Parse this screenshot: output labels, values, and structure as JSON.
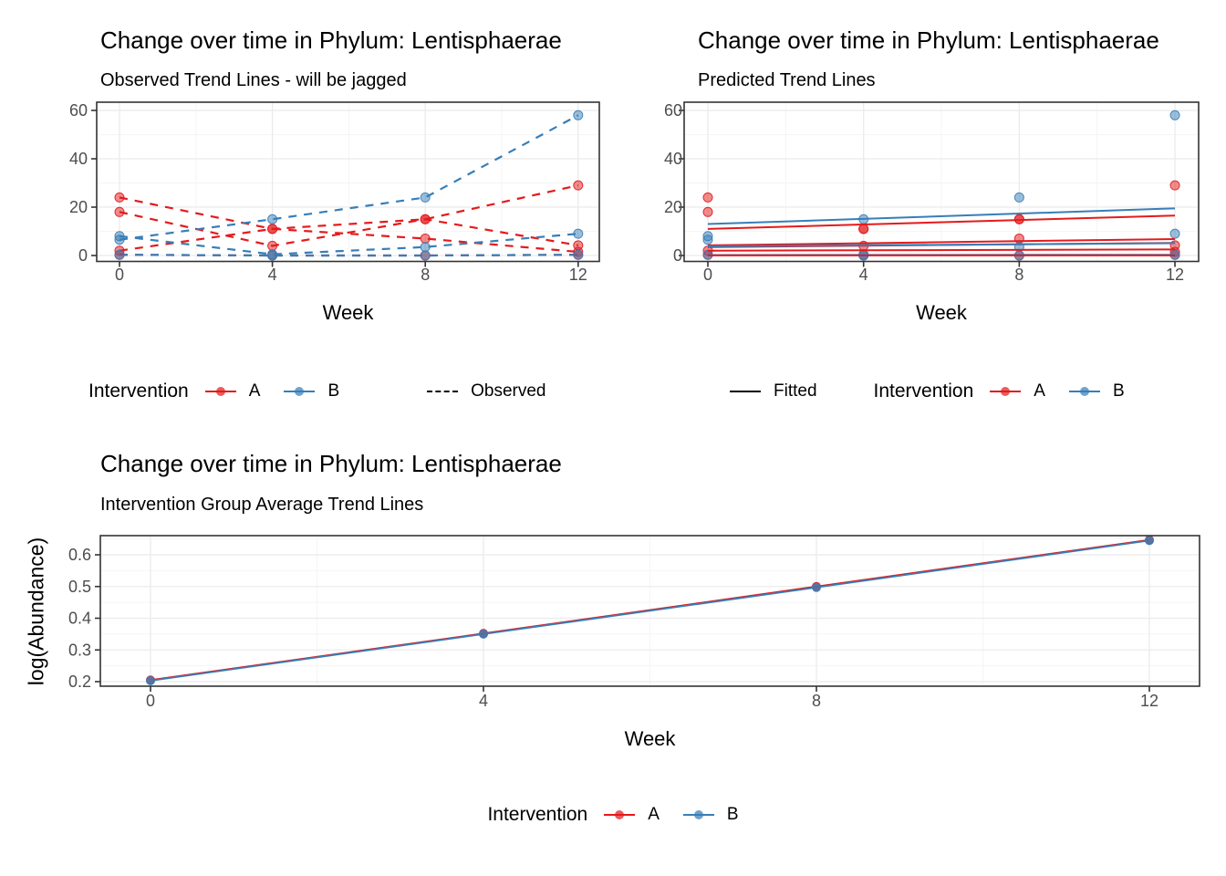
{
  "colors": {
    "A": "#E41A1C",
    "B": "#377EB8",
    "grid_major": "#EBEBEB",
    "grid_minor": "#F5F5F5",
    "panel_border": "#333333",
    "tick_label": "#4D4D4D",
    "legend_line": "#000000"
  },
  "chart_data": [
    {
      "type": "line",
      "key": "observed",
      "title": "Change over time in Phylum: Lentisphaerae",
      "subtitle": "Observed Trend Lines - will be jagged",
      "xlabel": "Week",
      "xticks": [
        0,
        4,
        8,
        12
      ],
      "xtick_labels": [
        "0",
        "4",
        "8",
        "12"
      ],
      "yticks": [
        0,
        20,
        40,
        60
      ],
      "ytick_labels": [
        "0",
        "20",
        "40",
        "60"
      ],
      "ylim": [
        -2.5,
        63
      ],
      "grid": true,
      "line_style": "dashed",
      "series": [
        {
          "group": "A",
          "x": [
            0,
            4,
            8,
            12
          ],
          "y": [
            24,
            11,
            15,
            29
          ]
        },
        {
          "group": "A",
          "x": [
            0,
            4,
            8,
            12
          ],
          "y": [
            18,
            4,
            15,
            4.2
          ]
        },
        {
          "group": "A",
          "x": [
            0,
            4,
            8,
            12
          ],
          "y": [
            2,
            11,
            7,
            1.5
          ]
        },
        {
          "group": "A",
          "x": [
            0,
            4,
            8,
            12
          ],
          "y": [
            0.3,
            0,
            0,
            0.3
          ]
        },
        {
          "group": "B",
          "x": [
            0,
            4,
            8,
            12
          ],
          "y": [
            6.5,
            15,
            24,
            58
          ]
        },
        {
          "group": "B",
          "x": [
            0,
            4,
            8,
            12
          ],
          "y": [
            8,
            0.5,
            3.5,
            9
          ]
        },
        {
          "group": "B",
          "x": [
            0,
            4,
            8,
            12
          ],
          "y": [
            0.3,
            0,
            0,
            0.3
          ]
        }
      ],
      "legend": {
        "title": "Intervention",
        "items": [
          {
            "label": "A"
          },
          {
            "label": "B"
          }
        ],
        "linetype_label": "Observed"
      }
    },
    {
      "type": "scatter",
      "key": "predicted",
      "title": "Change over time in Phylum: Lentisphaerae",
      "subtitle": "Predicted Trend Lines",
      "xlabel": "Week",
      "xticks": [
        0,
        4,
        8,
        12
      ],
      "xtick_labels": [
        "0",
        "4",
        "8",
        "12"
      ],
      "yticks": [
        0,
        20,
        40,
        60
      ],
      "ytick_labels": [
        "0",
        "20",
        "40",
        "60"
      ],
      "ylim": [
        -2.5,
        63
      ],
      "grid": true,
      "points": [
        {
          "group": "A",
          "x": [
            0,
            4,
            8,
            12
          ],
          "y": [
            24,
            11,
            15,
            29
          ]
        },
        {
          "group": "A",
          "x": [
            0,
            4,
            8,
            12
          ],
          "y": [
            18,
            4,
            15,
            4.2
          ]
        },
        {
          "group": "A",
          "x": [
            0,
            4,
            8,
            12
          ],
          "y": [
            2,
            11,
            7,
            1.5
          ]
        },
        {
          "group": "A",
          "x": [
            0,
            4,
            8,
            12
          ],
          "y": [
            0.3,
            0,
            0,
            0.3
          ]
        },
        {
          "group": "B",
          "x": [
            0,
            4,
            8,
            12
          ],
          "y": [
            6.5,
            15,
            24,
            58
          ]
        },
        {
          "group": "B",
          "x": [
            0,
            4,
            8,
            12
          ],
          "y": [
            8,
            0.5,
            3.5,
            9
          ]
        },
        {
          "group": "B",
          "x": [
            0,
            4,
            8,
            12
          ],
          "y": [
            0.3,
            0,
            0,
            0.3
          ]
        }
      ],
      "lines": [
        {
          "group": "B",
          "x": [
            0,
            12
          ],
          "y": [
            13,
            19.5
          ]
        },
        {
          "group": "A",
          "x": [
            0,
            12
          ],
          "y": [
            11,
            16.5
          ]
        },
        {
          "group": "A",
          "x": [
            0,
            12
          ],
          "y": [
            4.2,
            6.8
          ]
        },
        {
          "group": "A",
          "x": [
            0,
            12
          ],
          "y": [
            3.5,
            5.2
          ]
        },
        {
          "group": "B",
          "x": [
            0,
            12
          ],
          "y": [
            3.8,
            5.1
          ]
        },
        {
          "group": "A",
          "x": [
            0,
            12
          ],
          "y": [
            2,
            2.5
          ]
        },
        {
          "group": "B",
          "x": [
            0,
            12
          ],
          "y": [
            0.2,
            0.3
          ]
        },
        {
          "group": "A",
          "x": [
            0,
            12
          ],
          "y": [
            0.05,
            0.05
          ]
        }
      ],
      "legend": {
        "linetype_label": "Fitted",
        "title": "Intervention",
        "items": [
          {
            "label": "A"
          },
          {
            "label": "B"
          }
        ]
      }
    },
    {
      "type": "line",
      "key": "average",
      "title": "Change over time in Phylum: Lentisphaerae",
      "subtitle": "Intervention Group Average Trend Lines",
      "xlabel": "Week",
      "ylabel": "log(Abundance)",
      "xticks": [
        0,
        4,
        8,
        12
      ],
      "xtick_labels": [
        "0",
        "4",
        "8",
        "12"
      ],
      "yticks": [
        0.2,
        0.3,
        0.4,
        0.5,
        0.6
      ],
      "ytick_labels": [
        "0.2",
        "0.3",
        "0.4",
        "0.5",
        "0.6"
      ],
      "ylim": [
        0.185,
        0.668
      ],
      "grid": true,
      "line_style": "solid",
      "series": [
        {
          "group": "A",
          "x": [
            0,
            4,
            8,
            12
          ],
          "y": [
            0.205,
            0.352,
            0.5,
            0.647
          ]
        },
        {
          "group": "B",
          "x": [
            0,
            4,
            8,
            12
          ],
          "y": [
            0.203,
            0.35,
            0.497,
            0.645
          ]
        }
      ],
      "legend": {
        "title": "Intervention",
        "items": [
          {
            "label": "A"
          },
          {
            "label": "B"
          }
        ]
      }
    }
  ]
}
